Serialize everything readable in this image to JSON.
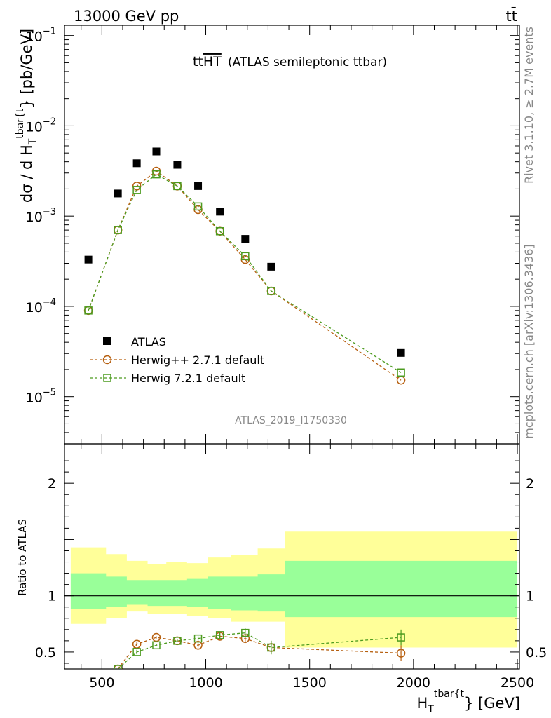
{
  "header": {
    "beam_label": "13000 GeV pp",
    "process_label": "tt̄",
    "plot_title": "tt",
    "plot_title_overline": "HT",
    "plot_subtitle": "(ATLAS semileptonic ttbar)",
    "analysis_id": "ATLAS_2019_I1750330",
    "side_right_1": "Rivet 3.1.10, ≥ 2.7M events",
    "side_right_2": "mcplots.cern.ch [arXiv:1306.3436]"
  },
  "chart_data": [
    {
      "type": "scatter",
      "panel": "main",
      "ylabel_main": "dσ / d H",
      "ylabel_sub": "T",
      "ylabel_sup": "tbar{t",
      "ylabel_tail": "} [pb/GeV]",
      "yscale": "log",
      "ylim": [
        3e-06,
        0.13
      ],
      "ytick_labels": [
        {
          "base": "10",
          "exp": "−1",
          "value": 0.1
        },
        {
          "base": "10",
          "exp": "−2",
          "value": 0.01
        },
        {
          "base": "10",
          "exp": "−3",
          "value": 0.001
        },
        {
          "base": "10",
          "exp": "−4",
          "value": 0.0001
        },
        {
          "base": "10",
          "exp": "−5",
          "value": 1e-05
        }
      ],
      "xlim": [
        320,
        2510
      ],
      "series": [
        {
          "name": "ATLAS",
          "color": "#000000",
          "marker": "filled-square",
          "x": [
            435,
            577,
            668,
            762,
            863,
            963,
            1068,
            1190,
            1315,
            1940
          ],
          "y": [
            0.00033,
            0.00178,
            0.00385,
            0.0052,
            0.0037,
            0.00215,
            0.00112,
            0.00056,
            0.000275,
            3.05e-05
          ]
        },
        {
          "name": "Herwig++ 2.7.1 default",
          "color": "#b65f0f",
          "marker": "open-circle",
          "x": [
            435,
            577,
            668,
            762,
            863,
            963,
            1068,
            1190,
            1315,
            1940
          ],
          "y": [
            9e-05,
            0.0007,
            0.00215,
            0.00315,
            0.00215,
            0.00118,
            0.00068,
            0.00033,
            0.000148,
            1.52e-05
          ]
        },
        {
          "name": "Herwig 7.2.1 default",
          "color": "#4c9b1f",
          "marker": "open-square",
          "x": [
            435,
            577,
            668,
            762,
            863,
            963,
            1068,
            1190,
            1315,
            1940
          ],
          "y": [
            9e-05,
            0.0007,
            0.00195,
            0.0029,
            0.00215,
            0.00128,
            0.00068,
            0.00036,
            0.000148,
            1.85e-05
          ]
        }
      ]
    },
    {
      "type": "scatter",
      "panel": "ratio",
      "ylabel": "Ratio to ATLAS",
      "xlabel_main": "H",
      "xlabel_sub": "T",
      "xlabel_sup": "tbar{t",
      "xlabel_tail": "} [GeV]",
      "ylim": [
        0.35,
        2.35
      ],
      "xlim": [
        320,
        2510
      ],
      "yticks": [
        0.5,
        1,
        2
      ],
      "ytick_labels": [
        "0.5",
        "1",
        "2"
      ],
      "xticks": [
        500,
        1000,
        1500,
        2000,
        2500
      ],
      "xtick_labels": [
        "500",
        "1000",
        "1500",
        "2000",
        "2500"
      ],
      "bands": {
        "edges": [
          350,
          520,
          620,
          720,
          810,
          910,
          1010,
          1120,
          1250,
          1380,
          2500
        ],
        "outer_low": [
          0.75,
          0.8,
          0.86,
          0.84,
          0.84,
          0.82,
          0.8,
          0.77,
          0.77,
          0.54
        ],
        "outer_high": [
          1.43,
          1.37,
          1.31,
          1.28,
          1.3,
          1.29,
          1.34,
          1.36,
          1.42,
          1.57
        ],
        "inner_low": [
          0.88,
          0.9,
          0.92,
          0.91,
          0.91,
          0.9,
          0.88,
          0.87,
          0.86,
          0.81
        ],
        "inner_high": [
          1.2,
          1.17,
          1.14,
          1.14,
          1.14,
          1.15,
          1.17,
          1.17,
          1.19,
          1.31
        ],
        "outer_color": "#ffff99",
        "inner_color": "#99ff99"
      },
      "series": [
        {
          "name": "Herwig++ 2.7.1 default",
          "color": "#b65f0f",
          "marker": "open-circle",
          "x": [
            577,
            668,
            762,
            863,
            963,
            1068,
            1190,
            1315,
            1940
          ],
          "y": [
            0.35,
            0.57,
            0.63,
            0.6,
            0.56,
            0.64,
            0.62,
            0.54,
            0.49
          ],
          "err": [
            0,
            0.02,
            0.01,
            0.01,
            0.02,
            0.03,
            0.04,
            0.06,
            0.07
          ]
        },
        {
          "name": "Herwig 7.2.1 default",
          "color": "#4c9b1f",
          "marker": "open-square",
          "x": [
            577,
            668,
            762,
            863,
            963,
            1068,
            1190,
            1315,
            1940
          ],
          "y": [
            0.35,
            0.5,
            0.56,
            0.6,
            0.62,
            0.65,
            0.67,
            0.54,
            0.63
          ],
          "err": [
            0,
            0.02,
            0.01,
            0.01,
            0.02,
            0.03,
            0.04,
            0.06,
            0.07
          ]
        }
      ]
    }
  ]
}
